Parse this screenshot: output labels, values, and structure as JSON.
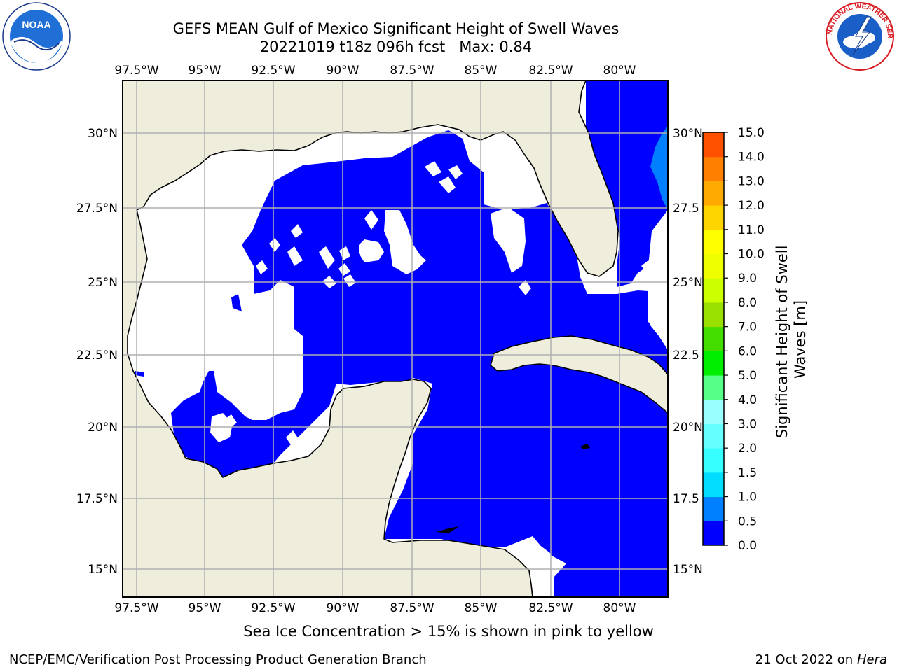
{
  "title_line1": "GEFS MEAN Gulf of Mexico Significant Height of Swell Waves",
  "title_line2": "20221019 t18z 096h fcst   Max: 0.84",
  "lon_labels": [
    "97.5°W",
    "95°W",
    "92.5°W",
    "90°W",
    "87.5°W",
    "85°W",
    "82.5°W",
    "80°W"
  ],
  "lat_labels": [
    "30°N",
    "27.5°N",
    "25°N",
    "22.5°N",
    "20°N",
    "17.5°N",
    "15°N"
  ],
  "lat_labels_right": [
    "30°N",
    "27.5",
    "25°N",
    "22.5",
    "20°N",
    "17.5",
    "15°N"
  ],
  "colorbar": {
    "label_line1": "Significant Height of Swell",
    "label_line2": "Waves [m]",
    "ticks": [
      "0.0",
      "0.5",
      "1.0",
      "1.5",
      "2.0",
      "3.0",
      "4.0",
      "5.0",
      "6.0",
      "7.0",
      "8.0",
      "9.0",
      "10.0",
      "11.0",
      "12.0",
      "13.0",
      "14.0",
      "15.0"
    ],
    "colors": [
      "#0000ff",
      "#0080ff",
      "#00ddff",
      "#35ffff",
      "#66ffff",
      "#9affff",
      "#55ff88",
      "#00ee00",
      "#44dd00",
      "#99e000",
      "#ccff00",
      "#eeff00",
      "#ffff00",
      "#ffd500",
      "#ffaa00",
      "#ff8000",
      "#ff5000",
      "#ff2000",
      "#ff0000"
    ],
    "min": 0.0,
    "max": 15.0
  },
  "land_color": "#efeddc",
  "ice_note": "Sea Ice Concentration > 15% is shown in pink to yellow",
  "footer_left": "NCEP/EMC/Verification Post Processing Product Generation Branch",
  "footer_right_date": "21 Oct 2022 on ",
  "footer_right_host": "Hera",
  "noaa_logo_text": "NOAA",
  "nws_logo_text": "NATIONAL WEATHER SERVICE"
}
